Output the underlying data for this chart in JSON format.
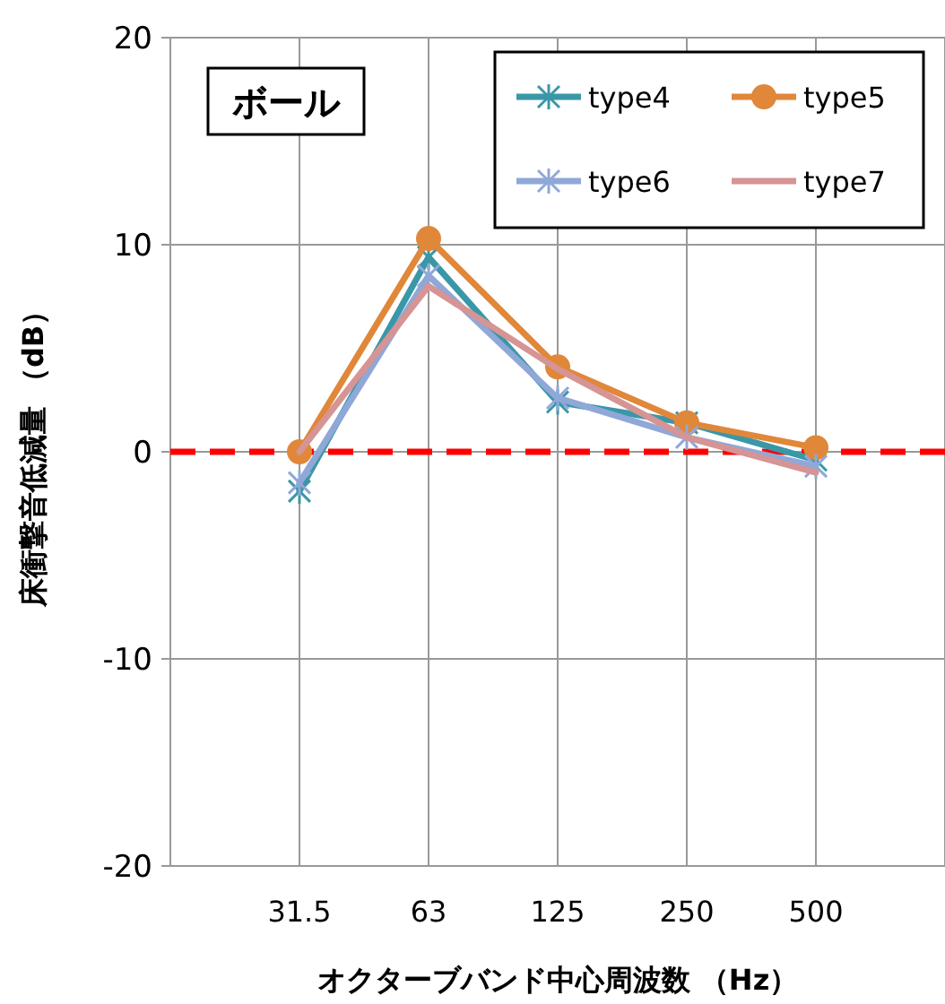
{
  "chart_data": {
    "type": "line",
    "xlabel": "オクターブバンド中心周波数 （Hz）",
    "ylabel": "床衝撃音低減量 （dB）",
    "categories": [
      "31.5",
      "63",
      "125",
      "250",
      "500"
    ],
    "series": [
      {
        "name": "type4",
        "color": "#3a97a8",
        "marker": "cross",
        "values": [
          -1.9,
          9.4,
          2.4,
          1.4,
          -0.4
        ]
      },
      {
        "name": "type5",
        "color": "#e0873a",
        "marker": "circle",
        "values": [
          0,
          10.3,
          4.1,
          1.4,
          0.2
        ]
      },
      {
        "name": "type6",
        "color": "#8fa8d8",
        "marker": "cross",
        "values": [
          -1.5,
          8.5,
          2.6,
          0.7,
          -0.7
        ]
      },
      {
        "name": "type7",
        "color": "#d69494",
        "marker": "none",
        "values": [
          0,
          8.0,
          4.0,
          0.7,
          -1.0
        ]
      }
    ],
    "ylim": [
      -20,
      20
    ],
    "yticks": [
      -20,
      -10,
      0,
      10,
      20
    ],
    "grid": true,
    "legend": "top right",
    "ref_lines": [
      {
        "axis": "y",
        "value": 0,
        "color": "#ff0000",
        "line_style": "dashed"
      }
    ],
    "annotations": [
      "ボール"
    ]
  }
}
